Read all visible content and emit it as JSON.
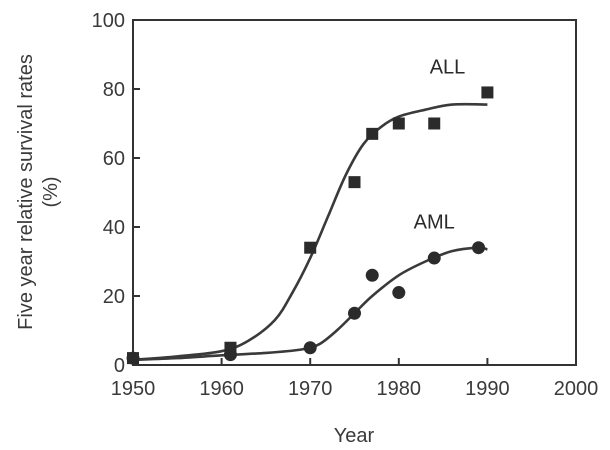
{
  "chart_data": {
    "type": "scatter",
    "xlabel": "Year",
    "ylabel_line1": "Five year relative survival rates",
    "ylabel_line2": "(%)",
    "xlim": [
      1950,
      2000
    ],
    "ylim": [
      0,
      100
    ],
    "xticks": [
      "1950",
      "1960",
      "1970",
      "1980",
      "1990",
      "2000"
    ],
    "yticks": [
      "0",
      "20",
      "40",
      "60",
      "80",
      "100"
    ],
    "grid": false,
    "colors": {
      "axis": "#333333",
      "marker": "#2b2b2b",
      "curve": "#3a3a3a"
    },
    "series": [
      {
        "name": "ALL",
        "marker": "square",
        "points": [
          {
            "x": 1950,
            "y": 2
          },
          {
            "x": 1961,
            "y": 5
          },
          {
            "x": 1970,
            "y": 34
          },
          {
            "x": 1975,
            "y": 53
          },
          {
            "x": 1977,
            "y": 67
          },
          {
            "x": 1980,
            "y": 70
          },
          {
            "x": 1984,
            "y": 70
          },
          {
            "x": 1990,
            "y": 79
          }
        ],
        "fit": [
          {
            "x": 1950,
            "y": 1.5
          },
          {
            "x": 1955,
            "y": 2.5
          },
          {
            "x": 1960,
            "y": 4
          },
          {
            "x": 1963,
            "y": 7
          },
          {
            "x": 1966,
            "y": 13
          },
          {
            "x": 1968,
            "y": 21
          },
          {
            "x": 1970,
            "y": 31
          },
          {
            "x": 1972,
            "y": 43
          },
          {
            "x": 1974,
            "y": 55
          },
          {
            "x": 1976,
            "y": 64
          },
          {
            "x": 1978,
            "y": 69
          },
          {
            "x": 1980,
            "y": 72
          },
          {
            "x": 1983,
            "y": 74
          },
          {
            "x": 1986,
            "y": 75.5
          },
          {
            "x": 1990,
            "y": 75.5
          }
        ]
      },
      {
        "name": "AML",
        "marker": "circle",
        "points": [
          {
            "x": 1950,
            "y": 2
          },
          {
            "x": 1961,
            "y": 3
          },
          {
            "x": 1970,
            "y": 5
          },
          {
            "x": 1975,
            "y": 15
          },
          {
            "x": 1977,
            "y": 26
          },
          {
            "x": 1980,
            "y": 21
          },
          {
            "x": 1984,
            "y": 31
          },
          {
            "x": 1989,
            "y": 34
          }
        ],
        "fit": [
          {
            "x": 1950,
            "y": 1.5
          },
          {
            "x": 1955,
            "y": 2
          },
          {
            "x": 1960,
            "y": 2.8
          },
          {
            "x": 1965,
            "y": 3.5
          },
          {
            "x": 1969,
            "y": 4.5
          },
          {
            "x": 1971,
            "y": 6
          },
          {
            "x": 1973,
            "y": 10
          },
          {
            "x": 1975,
            "y": 15
          },
          {
            "x": 1977,
            "y": 20
          },
          {
            "x": 1980,
            "y": 26
          },
          {
            "x": 1983,
            "y": 30
          },
          {
            "x": 1986,
            "y": 33
          },
          {
            "x": 1989,
            "y": 34
          },
          {
            "x": 1990,
            "y": 33.5
          }
        ]
      }
    ]
  }
}
